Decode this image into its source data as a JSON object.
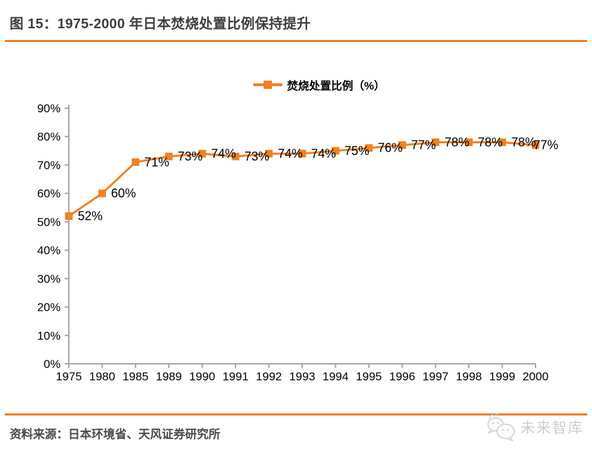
{
  "header": {
    "title": "图 15：1975-2000 年日本焚烧处置比例保持提升"
  },
  "footer": {
    "source": "资料来源：日本环境省、天风证券研究所",
    "watermark_text": "未来智库"
  },
  "colors": {
    "accent": "#F07D1E",
    "series": "#EE8122",
    "axis": "#A6A6A6",
    "title_text": "#3E3E3E",
    "source_text": "#4A4A4A",
    "data_label": "#000000",
    "watermark": "#CCCCCC"
  },
  "chart_data": {
    "type": "line",
    "title": "",
    "xlabel": "",
    "ylabel": "",
    "categories": [
      "1975",
      "1980",
      "1985",
      "1989",
      "1990",
      "1991",
      "1992",
      "1993",
      "1994",
      "1995",
      "1996",
      "1997",
      "1998",
      "1999",
      "2000"
    ],
    "series": [
      {
        "name": "焚烧处置比例（%）",
        "values": [
          52,
          60,
          71,
          73,
          74,
          73,
          74,
          74,
          75,
          76,
          77,
          78,
          78,
          78,
          77
        ],
        "labels": [
          "52%",
          "60%",
          "71%",
          "73%",
          "74%",
          "73%",
          "74%",
          "74%",
          "75%",
          "76%",
          "77%",
          "78%",
          "78%",
          "78%",
          "77%"
        ],
        "marker": "square"
      }
    ],
    "ylim": [
      0,
      90
    ],
    "ytick_step": 10,
    "ytick_labels": [
      "0%",
      "10%",
      "20%",
      "30%",
      "40%",
      "50%",
      "60%",
      "70%",
      "80%",
      "90%"
    ],
    "grid": false,
    "legend_position": "top-center",
    "data_labels": true
  }
}
